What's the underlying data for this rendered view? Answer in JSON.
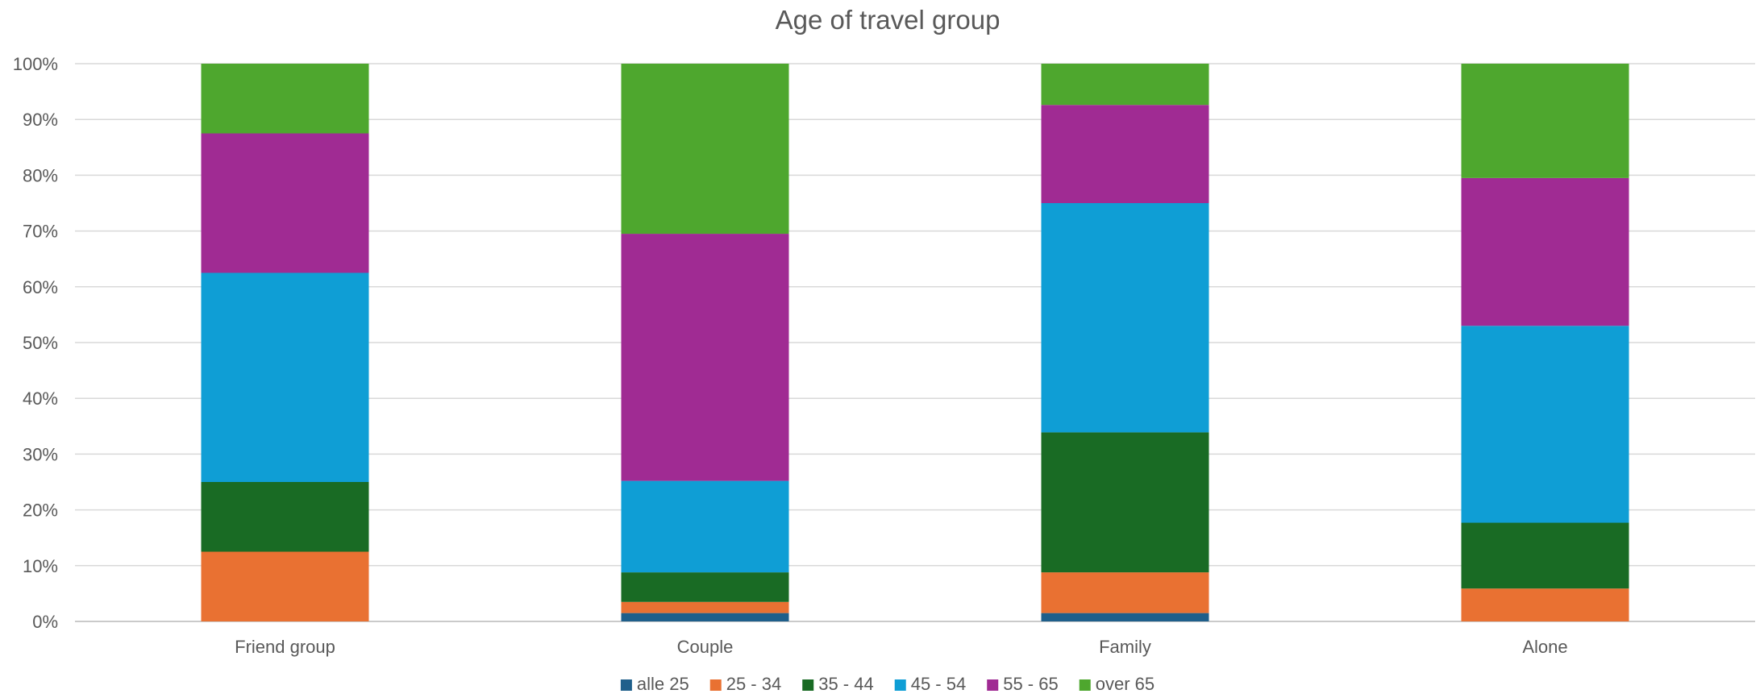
{
  "chart_data": {
    "type": "bar",
    "stacked": "percent",
    "title": "Age of travel group",
    "categories": [
      "Friend group",
      "Couple",
      "Family",
      "Alone"
    ],
    "ylim": [
      0,
      100
    ],
    "y_ticks": [
      "0%",
      "10%",
      "20%",
      "30%",
      "40%",
      "50%",
      "60%",
      "70%",
      "80%",
      "90%",
      "100%"
    ],
    "grid": true,
    "legend_position": "bottom",
    "series": [
      {
        "name": "alle 25",
        "color": "#1f5f8b",
        "values": [
          0,
          1.5,
          1.5,
          0
        ]
      },
      {
        "name": "25 - 34",
        "color": "#e97132",
        "values": [
          12.5,
          2.0,
          7.3,
          5.9
        ]
      },
      {
        "name": "35 - 44",
        "color": "#196b24",
        "values": [
          12.5,
          5.3,
          25.1,
          11.8
        ]
      },
      {
        "name": "45 - 54",
        "color": "#0f9ed5",
        "values": [
          37.5,
          16.4,
          41.1,
          35.3
        ]
      },
      {
        "name": "55 - 65",
        "color": "#a02b93",
        "values": [
          25.0,
          44.3,
          17.6,
          26.5
        ]
      },
      {
        "name": "over 65",
        "color": "#4ea72e",
        "values": [
          12.5,
          30.5,
          7.4,
          20.5
        ]
      }
    ]
  }
}
